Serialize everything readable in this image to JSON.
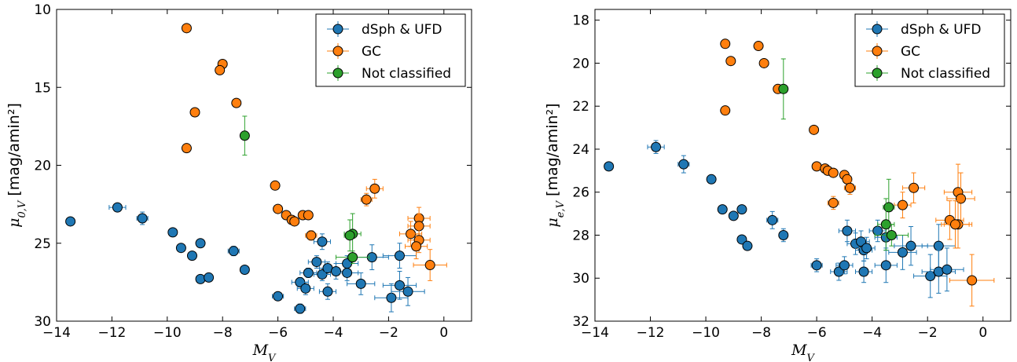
{
  "chart_data": [
    {
      "type": "scatter",
      "xlabel": "M_V",
      "ylabel": "μ_{0,V} [mag/amin²]",
      "xlim": [
        -14,
        1
      ],
      "ylim": [
        30,
        10
      ],
      "y_inverted": true,
      "xticks": [
        -14,
        -12,
        -10,
        -8,
        -6,
        -4,
        -2,
        0
      ],
      "yticks": [
        10,
        15,
        20,
        25,
        30
      ],
      "grid": false,
      "legend": {
        "position": "top-right"
      },
      "series": [
        {
          "name": "dSph & UFD",
          "color": "#1f77b4",
          "points": [
            {
              "x": -13.5,
              "y": 23.6,
              "xerr": 0,
              "yerr": 0
            },
            {
              "x": -11.8,
              "y": 22.7,
              "xerr": 0.3,
              "yerr": 0.2
            },
            {
              "x": -10.9,
              "y": 23.4,
              "xerr": 0.2,
              "yerr": 0.4
            },
            {
              "x": -9.8,
              "y": 24.3,
              "xerr": 0,
              "yerr": 0
            },
            {
              "x": -9.5,
              "y": 25.3,
              "xerr": 0,
              "yerr": 0
            },
            {
              "x": -9.1,
              "y": 25.8,
              "xerr": 0,
              "yerr": 0
            },
            {
              "x": -8.8,
              "y": 25.0,
              "xerr": 0,
              "yerr": 0
            },
            {
              "x": -8.8,
              "y": 27.3,
              "xerr": 0,
              "yerr": 0
            },
            {
              "x": -8.5,
              "y": 27.2,
              "xerr": 0,
              "yerr": 0
            },
            {
              "x": -7.6,
              "y": 25.5,
              "xerr": 0.2,
              "yerr": 0.3
            },
            {
              "x": -7.2,
              "y": 26.7,
              "xerr": 0,
              "yerr": 0
            },
            {
              "x": -6.0,
              "y": 28.4,
              "xerr": 0.2,
              "yerr": 0.2
            },
            {
              "x": -5.2,
              "y": 29.2,
              "xerr": 0.2,
              "yerr": 0.3
            },
            {
              "x": -5.2,
              "y": 27.5,
              "xerr": 0.3,
              "yerr": 0.3
            },
            {
              "x": -5.0,
              "y": 27.9,
              "xerr": 0.3,
              "yerr": 0.4
            },
            {
              "x": -4.9,
              "y": 26.9,
              "xerr": 0.3,
              "yerr": 0.3
            },
            {
              "x": -4.6,
              "y": 26.2,
              "xerr": 0.3,
              "yerr": 0.4
            },
            {
              "x": -4.4,
              "y": 27.0,
              "xerr": 0.3,
              "yerr": 0.4
            },
            {
              "x": -4.4,
              "y": 24.9,
              "xerr": 0.3,
              "yerr": 0.5
            },
            {
              "x": -4.2,
              "y": 26.6,
              "xerr": 0.3,
              "yerr": 0.4
            },
            {
              "x": -4.2,
              "y": 28.1,
              "xerr": 0.3,
              "yerr": 0.5
            },
            {
              "x": -3.9,
              "y": 26.8,
              "xerr": 0.4,
              "yerr": 0.5
            },
            {
              "x": -3.5,
              "y": 26.9,
              "xerr": 0.4,
              "yerr": 0.5
            },
            {
              "x": -3.5,
              "y": 26.3,
              "xerr": 0.4,
              "yerr": 0.5
            },
            {
              "x": -3.0,
              "y": 27.6,
              "xerr": 0.5,
              "yerr": 0.7
            },
            {
              "x": -2.6,
              "y": 25.9,
              "xerr": 0.6,
              "yerr": 0.8
            },
            {
              "x": -1.9,
              "y": 28.5,
              "xerr": 0.6,
              "yerr": 0.9
            },
            {
              "x": -1.6,
              "y": 25.8,
              "xerr": 0.6,
              "yerr": 0.8
            },
            {
              "x": -1.6,
              "y": 27.7,
              "xerr": 0.6,
              "yerr": 0.9
            },
            {
              "x": -1.3,
              "y": 28.1,
              "xerr": 0.6,
              "yerr": 0.9
            }
          ]
        },
        {
          "name": "GC",
          "color": "#ff7f0e",
          "points": [
            {
              "x": -9.3,
              "y": 11.2,
              "xerr": 0,
              "yerr": 0
            },
            {
              "x": -9.3,
              "y": 18.9,
              "xerr": 0,
              "yerr": 0
            },
            {
              "x": -9.0,
              "y": 16.6,
              "xerr": 0,
              "yerr": 0
            },
            {
              "x": -8.0,
              "y": 13.5,
              "xerr": 0,
              "yerr": 0
            },
            {
              "x": -8.1,
              "y": 13.9,
              "xerr": 0,
              "yerr": 0
            },
            {
              "x": -7.5,
              "y": 16.0,
              "xerr": 0,
              "yerr": 0
            },
            {
              "x": -6.1,
              "y": 21.3,
              "xerr": 0,
              "yerr": 0
            },
            {
              "x": -6.0,
              "y": 22.8,
              "xerr": 0,
              "yerr": 0
            },
            {
              "x": -5.7,
              "y": 23.2,
              "xerr": 0.1,
              "yerr": 0.1
            },
            {
              "x": -5.5,
              "y": 23.5,
              "xerr": 0.1,
              "yerr": 0.1
            },
            {
              "x": -5.4,
              "y": 23.6,
              "xerr": 0.1,
              "yerr": 0.1
            },
            {
              "x": -5.1,
              "y": 23.2,
              "xerr": 0.1,
              "yerr": 0.1
            },
            {
              "x": -4.9,
              "y": 23.2,
              "xerr": 0.1,
              "yerr": 0.1
            },
            {
              "x": -4.8,
              "y": 24.5,
              "xerr": 0.2,
              "yerr": 0.3
            },
            {
              "x": -2.8,
              "y": 22.2,
              "xerr": 0.2,
              "yerr": 0.4
            },
            {
              "x": -2.5,
              "y": 21.5,
              "xerr": 0.3,
              "yerr": 0.6
            },
            {
              "x": -1.2,
              "y": 24.4,
              "xerr": 0.4,
              "yerr": 0.8
            },
            {
              "x": -0.9,
              "y": 23.4,
              "xerr": 0.4,
              "yerr": 0.7
            },
            {
              "x": -0.9,
              "y": 23.9,
              "xerr": 0.4,
              "yerr": 0.8
            },
            {
              "x": -0.9,
              "y": 24.8,
              "xerr": 0.4,
              "yerr": 0.8
            },
            {
              "x": -1.0,
              "y": 25.2,
              "xerr": 0.4,
              "yerr": 0.8
            },
            {
              "x": -0.5,
              "y": 26.4,
              "xerr": 0.6,
              "yerr": 1.0
            }
          ]
        },
        {
          "name": "Not classified",
          "color": "#2ca02c",
          "points": [
            {
              "x": -7.2,
              "y": 18.1,
              "xerr": 0,
              "yerr": 1.25
            },
            {
              "x": -3.3,
              "y": 24.4,
              "xerr": 0.3,
              "yerr": 1.3
            },
            {
              "x": -3.4,
              "y": 24.5,
              "xerr": 0.2,
              "yerr": 1.0
            },
            {
              "x": -3.3,
              "y": 25.9,
              "xerr": 0.6,
              "yerr": 0.4
            }
          ]
        }
      ]
    },
    {
      "type": "scatter",
      "xlabel": "M_V",
      "ylabel": "μ_{e,V} [mag/amin²]",
      "xlim": [
        -14,
        1
      ],
      "ylim": [
        32,
        17.5
      ],
      "y_inverted": true,
      "xticks": [
        -14,
        -12,
        -10,
        -8,
        -6,
        -4,
        -2,
        0
      ],
      "yticks": [
        18,
        20,
        22,
        24,
        26,
        28,
        30,
        32
      ],
      "grid": false,
      "legend": {
        "position": "top-right"
      },
      "series": [
        {
          "name": "dSph & UFD",
          "color": "#1f77b4",
          "points": [
            {
              "x": -13.5,
              "y": 24.8,
              "xerr": 0,
              "yerr": 0
            },
            {
              "x": -11.8,
              "y": 23.9,
              "xerr": 0.3,
              "yerr": 0.3
            },
            {
              "x": -10.8,
              "y": 24.7,
              "xerr": 0.2,
              "yerr": 0.4
            },
            {
              "x": -9.8,
              "y": 25.4,
              "xerr": 0,
              "yerr": 0
            },
            {
              "x": -9.4,
              "y": 26.8,
              "xerr": 0,
              "yerr": 0
            },
            {
              "x": -9.0,
              "y": 27.1,
              "xerr": 0,
              "yerr": 0
            },
            {
              "x": -8.7,
              "y": 26.8,
              "xerr": 0,
              "yerr": 0
            },
            {
              "x": -8.7,
              "y": 28.2,
              "xerr": 0,
              "yerr": 0
            },
            {
              "x": -8.5,
              "y": 28.5,
              "xerr": 0,
              "yerr": 0
            },
            {
              "x": -7.6,
              "y": 27.3,
              "xerr": 0.2,
              "yerr": 0.4
            },
            {
              "x": -7.2,
              "y": 28.0,
              "xerr": 0,
              "yerr": 0.3
            },
            {
              "x": -6.0,
              "y": 29.4,
              "xerr": 0.2,
              "yerr": 0.3
            },
            {
              "x": -5.2,
              "y": 29.7,
              "xerr": 0.3,
              "yerr": 0.4
            },
            {
              "x": -5.0,
              "y": 29.4,
              "xerr": 0.3,
              "yerr": 0.4
            },
            {
              "x": -4.9,
              "y": 27.8,
              "xerr": 0.3,
              "yerr": 0.5
            },
            {
              "x": -4.6,
              "y": 28.4,
              "xerr": 0.3,
              "yerr": 0.5
            },
            {
              "x": -4.4,
              "y": 28.3,
              "xerr": 0.3,
              "yerr": 0.5
            },
            {
              "x": -4.3,
              "y": 28.7,
              "xerr": 0.3,
              "yerr": 0.5
            },
            {
              "x": -4.2,
              "y": 28.6,
              "xerr": 0.3,
              "yerr": 0.5
            },
            {
              "x": -4.3,
              "y": 29.7,
              "xerr": 0.3,
              "yerr": 0.5
            },
            {
              "x": -3.8,
              "y": 27.8,
              "xerr": 0.3,
              "yerr": 0.5
            },
            {
              "x": -3.5,
              "y": 28.1,
              "xerr": 0.4,
              "yerr": 0.6
            },
            {
              "x": -3.5,
              "y": 29.4,
              "xerr": 0.4,
              "yerr": 0.8
            },
            {
              "x": -2.9,
              "y": 28.8,
              "xerr": 0.5,
              "yerr": 0.8
            },
            {
              "x": -2.6,
              "y": 28.5,
              "xerr": 0.6,
              "yerr": 0.9
            },
            {
              "x": -1.9,
              "y": 29.9,
              "xerr": 0.6,
              "yerr": 1.0
            },
            {
              "x": -1.6,
              "y": 28.5,
              "xerr": 0.6,
              "yerr": 1.0
            },
            {
              "x": -1.6,
              "y": 29.7,
              "xerr": 0.6,
              "yerr": 1.0
            },
            {
              "x": -1.3,
              "y": 29.6,
              "xerr": 0.6,
              "yerr": 1.0
            }
          ]
        },
        {
          "name": "GC",
          "color": "#ff7f0e",
          "points": [
            {
              "x": -9.3,
              "y": 19.1,
              "xerr": 0,
              "yerr": 0
            },
            {
              "x": -9.1,
              "y": 19.9,
              "xerr": 0,
              "yerr": 0
            },
            {
              "x": -8.1,
              "y": 19.2,
              "xerr": 0,
              "yerr": 0
            },
            {
              "x": -7.9,
              "y": 20.0,
              "xerr": 0,
              "yerr": 0
            },
            {
              "x": -7.4,
              "y": 21.2,
              "xerr": 0,
              "yerr": 0
            },
            {
              "x": -9.3,
              "y": 22.2,
              "xerr": 0,
              "yerr": 0
            },
            {
              "x": -6.1,
              "y": 23.1,
              "xerr": 0,
              "yerr": 0
            },
            {
              "x": -6.0,
              "y": 24.8,
              "xerr": 0,
              "yerr": 0
            },
            {
              "x": -5.7,
              "y": 24.9,
              "xerr": 0.1,
              "yerr": 0.1
            },
            {
              "x": -5.6,
              "y": 25.0,
              "xerr": 0.1,
              "yerr": 0.1
            },
            {
              "x": -5.4,
              "y": 25.1,
              "xerr": 0.1,
              "yerr": 0.1
            },
            {
              "x": -5.0,
              "y": 25.2,
              "xerr": 0.1,
              "yerr": 0.2
            },
            {
              "x": -4.9,
              "y": 25.4,
              "xerr": 0.1,
              "yerr": 0.2
            },
            {
              "x": -4.8,
              "y": 25.8,
              "xerr": 0.2,
              "yerr": 0.3
            },
            {
              "x": -5.4,
              "y": 26.5,
              "xerr": 0.2,
              "yerr": 0.3
            },
            {
              "x": -2.9,
              "y": 26.6,
              "xerr": 0.3,
              "yerr": 0.6
            },
            {
              "x": -2.5,
              "y": 25.8,
              "xerr": 0.4,
              "yerr": 0.7
            },
            {
              "x": -1.2,
              "y": 27.3,
              "xerr": 0.5,
              "yerr": 0.9
            },
            {
              "x": -0.9,
              "y": 26.0,
              "xerr": 0.5,
              "yerr": 1.3
            },
            {
              "x": -0.8,
              "y": 26.3,
              "xerr": 0.5,
              "yerr": 1.2
            },
            {
              "x": -0.9,
              "y": 27.5,
              "xerr": 0.5,
              "yerr": 1.1
            },
            {
              "x": -1.0,
              "y": 27.5,
              "xerr": 0.5,
              "yerr": 1.1
            },
            {
              "x": -0.4,
              "y": 30.1,
              "xerr": 0.8,
              "yerr": 1.2
            }
          ]
        },
        {
          "name": "Not classified",
          "color": "#2ca02c",
          "points": [
            {
              "x": -7.2,
              "y": 21.2,
              "xerr": 0,
              "yerr": 1.4
            },
            {
              "x": -3.4,
              "y": 26.7,
              "xerr": 0.2,
              "yerr": 1.3
            },
            {
              "x": -3.5,
              "y": 27.5,
              "xerr": 0.3,
              "yerr": 1.2
            },
            {
              "x": -3.3,
              "y": 28.0,
              "xerr": 0.6,
              "yerr": 0.5
            }
          ]
        }
      ]
    }
  ]
}
